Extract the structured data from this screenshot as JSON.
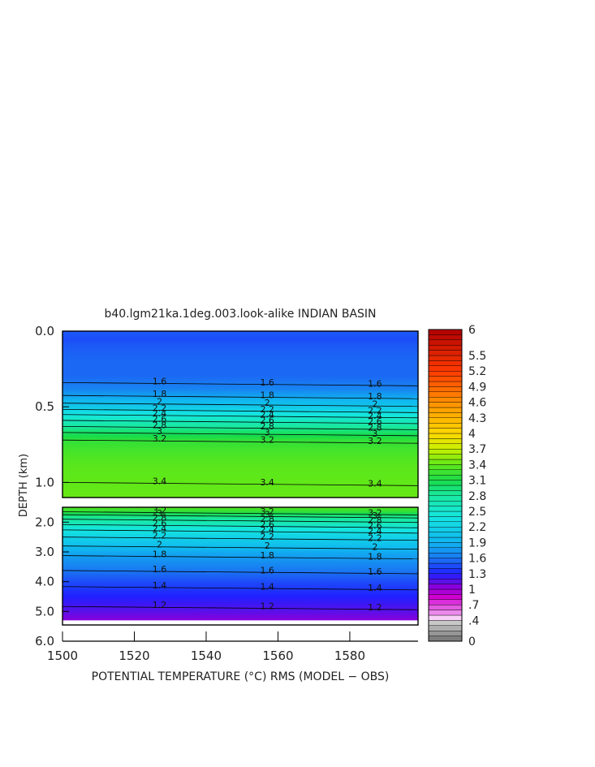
{
  "chart_data": {
    "type": "heatmap",
    "title": "b40.lgm21ka.1deg.003.look-alike INDIAN BASIN",
    "xlabel": "POTENTIAL TEMPERATURE (°C) RMS (MODEL − OBS)",
    "ylabel": "DEPTH (km)",
    "xlim": [
      1500,
      1599
    ],
    "x_ticks": [
      "1500",
      "1520",
      "1540",
      "1560",
      "1580"
    ],
    "x_tick_values": [
      1500,
      1520,
      1540,
      1560,
      1580
    ],
    "upper_panel": {
      "ylim": [
        0.0,
        1.1
      ],
      "y_ticks": [
        "0.0",
        "0.5",
        "1.0"
      ],
      "y_tick_values": [
        0.0,
        0.5,
        1.0
      ],
      "profile": [
        {
          "depth": 0.0,
          "value": 1.5
        },
        {
          "depth": 0.05,
          "value": 1.45
        },
        {
          "depth": 0.1,
          "value": 1.5
        },
        {
          "depth": 0.2,
          "value": 1.55
        },
        {
          "depth": 0.3,
          "value": 1.55
        },
        {
          "depth": 0.38,
          "value": 1.65
        },
        {
          "depth": 0.44,
          "value": 1.85
        },
        {
          "depth": 0.5,
          "value": 2.1
        },
        {
          "depth": 0.56,
          "value": 2.45
        },
        {
          "depth": 0.62,
          "value": 2.75
        },
        {
          "depth": 0.67,
          "value": 3.0
        },
        {
          "depth": 0.72,
          "value": 3.2
        },
        {
          "depth": 0.8,
          "value": 3.3
        },
        {
          "depth": 0.9,
          "value": 3.38
        },
        {
          "depth": 1.0,
          "value": 3.4
        },
        {
          "depth": 1.1,
          "value": 3.42
        }
      ],
      "contour_labels": [
        "1.6",
        "1.8",
        "2",
        "2.2",
        "2.4",
        "2.6",
        "2.8",
        "3",
        "3.2",
        "3.4"
      ]
    },
    "lower_panel": {
      "ylim": [
        1.5,
        6.0
      ],
      "y_ticks": [
        "2.0",
        "3.0",
        "4.0",
        "5.0",
        "6.0"
      ],
      "y_tick_values": [
        2.0,
        3.0,
        4.0,
        5.0,
        6.0
      ],
      "data_bottom_depth": 5.3,
      "profile": [
        {
          "depth": 1.5,
          "value": 3.35
        },
        {
          "depth": 1.65,
          "value": 3.2
        },
        {
          "depth": 1.8,
          "value": 2.9
        },
        {
          "depth": 2.0,
          "value": 2.7
        },
        {
          "depth": 2.2,
          "value": 2.45
        },
        {
          "depth": 2.5,
          "value": 2.2
        },
        {
          "depth": 2.8,
          "value": 2.0
        },
        {
          "depth": 3.0,
          "value": 1.85
        },
        {
          "depth": 3.5,
          "value": 1.65
        },
        {
          "depth": 4.0,
          "value": 1.45
        },
        {
          "depth": 4.5,
          "value": 1.3
        },
        {
          "depth": 5.0,
          "value": 1.15
        },
        {
          "depth": 5.3,
          "value": 1.05
        }
      ],
      "contour_labels": [
        "3.2",
        "3",
        "2.8",
        "2.6",
        "2.4",
        "2.2",
        "2",
        "1.8",
        "1.6",
        "1.4",
        "1.2"
      ]
    },
    "colorbar": {
      "min": 0,
      "max": 6,
      "labels": [
        "6",
        "5.5",
        "5.2",
        "4.9",
        "4.6",
        "4.3",
        "4",
        "3.7",
        "3.4",
        "3.1",
        "2.8",
        "2.5",
        "2.2",
        "1.9",
        "1.6",
        "1.3",
        "1",
        ".7",
        ".4",
        "0"
      ]
    }
  }
}
